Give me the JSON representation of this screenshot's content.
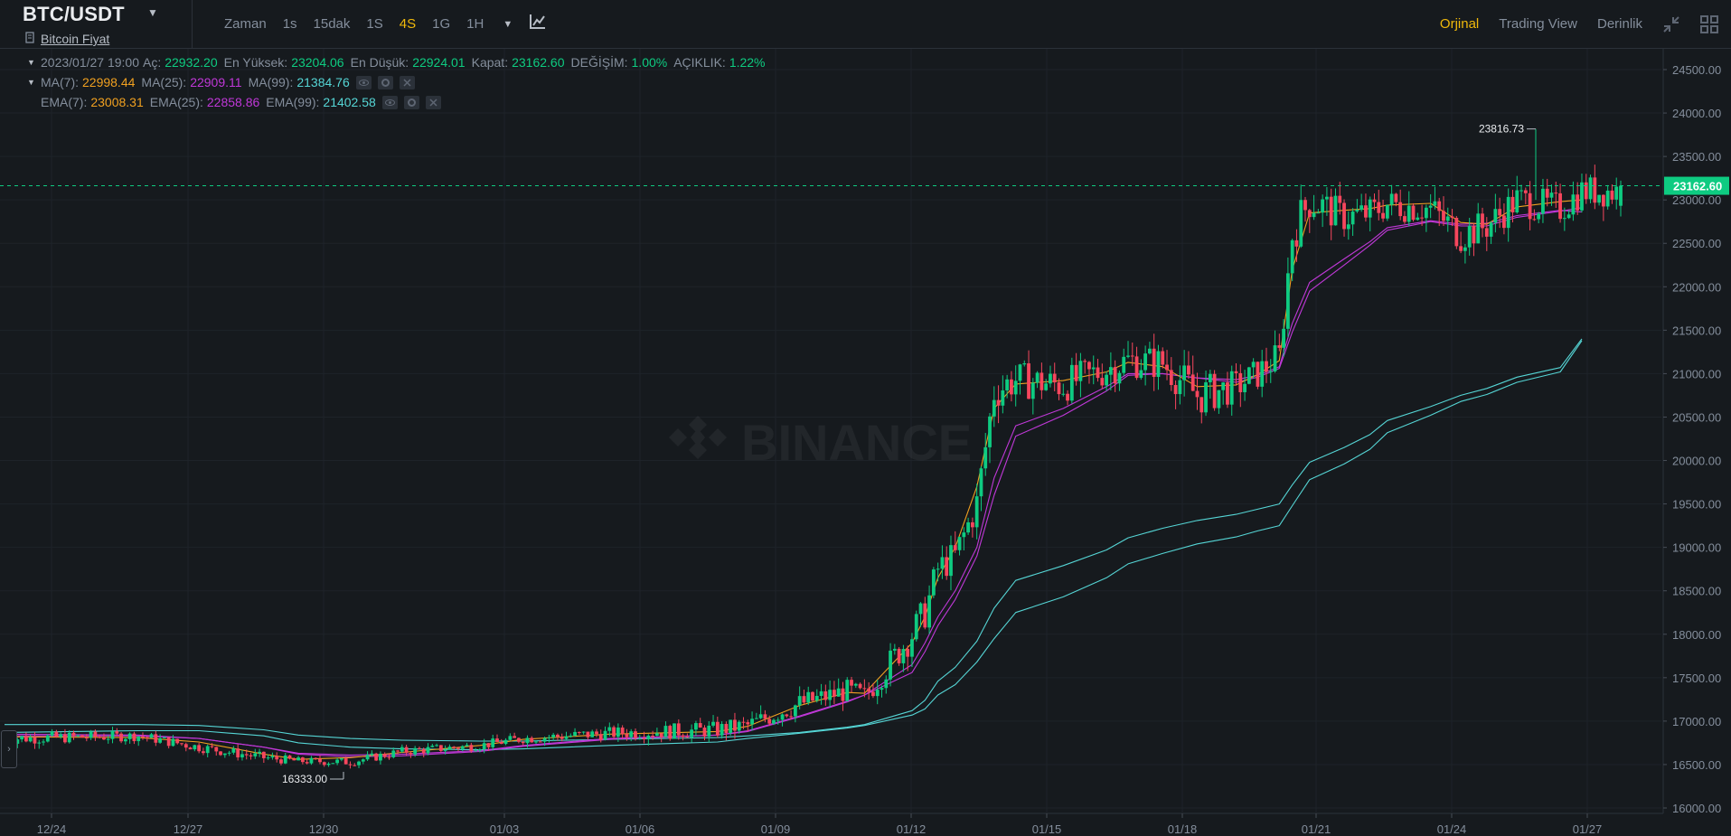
{
  "header": {
    "pair": "BTC/USDT",
    "subtitle": "Bitcoin Fiyat",
    "timeframes": {
      "label": "Zaman",
      "items": [
        "1s",
        "15dak",
        "1S",
        "4S",
        "1G",
        "1H"
      ],
      "active": "4S"
    },
    "views": [
      "Orjinal",
      "Trading View",
      "Derinlik"
    ],
    "active_view": "Orjinal"
  },
  "legend": {
    "date": "2023/01/27 19:00",
    "open_label": "Aç:",
    "open": "22932.20",
    "high_label": "En Yüksek:",
    "high": "23204.06",
    "low_label": "En Düşük:",
    "low": "22924.01",
    "close_label": "Kapat:",
    "close": "23162.60",
    "change_label": "DEĞİŞİM:",
    "change": "1.00%",
    "amplitude_label": "AÇIKLIK:",
    "amplitude": "1.22%",
    "ma7_label": "MA(7):",
    "ma7": "22998.44",
    "ma25_label": "MA(25):",
    "ma25": "22909.11",
    "ma99_label": "MA(99):",
    "ma99": "21384.76",
    "ema7_label": "EMA(7):",
    "ema7": "23008.31",
    "ema25_label": "EMA(25):",
    "ema25": "22858.86",
    "ema99_label": "EMA(99):",
    "ema99": "21402.58"
  },
  "colors": {
    "up": "#0ecb81",
    "down": "#f6465d",
    "accent": "#f0b90b",
    "ma7": "#f0a020",
    "ma25": "#c038d8",
    "ma99": "#55d5d5",
    "ema7": "#f0a020",
    "ema25": "#c038d8",
    "ema99": "#55d5d5"
  },
  "chart_data": {
    "type": "candlestick",
    "watermark": "BINANCE",
    "y_ticks": [
      "24500.00",
      "24000.00",
      "23500.00",
      "23000.00",
      "22500.00",
      "22000.00",
      "21500.00",
      "21000.00",
      "20500.00",
      "20000.00",
      "19500.00",
      "19000.00",
      "18500.00",
      "18000.00",
      "17500.00",
      "17000.00",
      "16500.00",
      "16000.00"
    ],
    "x_ticks": [
      "12/24",
      "12/27",
      "12/30",
      "01/03",
      "01/06",
      "01/09",
      "01/12",
      "01/15",
      "01/18",
      "01/21",
      "01/24",
      "01/27"
    ],
    "ylim": [
      15600,
      24700
    ],
    "current_price": "23162.60",
    "high_marker": "23816.73",
    "low_marker": "16333.00",
    "segments": [
      [
        0,
        16800,
        150,
        40
      ],
      [
        31,
        16830,
        120,
        40
      ],
      [
        45,
        16700,
        120,
        60
      ],
      [
        60,
        16580,
        120,
        40
      ],
      [
        68,
        16540,
        90,
        30
      ],
      [
        80,
        16530,
        100,
        35
      ],
      [
        92,
        16650,
        110,
        45
      ],
      [
        110,
        16720,
        110,
        40
      ],
      [
        120,
        16800,
        120,
        45
      ],
      [
        140,
        16860,
        150,
        55
      ],
      [
        165,
        16900,
        200,
        60
      ],
      [
        172,
        16950,
        220,
        60
      ],
      [
        184,
        17200,
        260,
        70
      ],
      [
        195,
        17350,
        260,
        80
      ],
      [
        199,
        17280,
        280,
        90
      ],
      [
        210,
        18000,
        400,
        140
      ],
      [
        213,
        18250,
        400,
        140
      ],
      [
        216,
        18750,
        380,
        140
      ],
      [
        220,
        18900,
        380,
        140
      ],
      [
        225,
        19500,
        420,
        140
      ],
      [
        229,
        20800,
        500,
        160
      ],
      [
        234,
        20930,
        420,
        150
      ],
      [
        245,
        20870,
        420,
        130
      ],
      [
        255,
        21050,
        420,
        150
      ],
      [
        260,
        21150,
        400,
        150
      ],
      [
        268,
        21120,
        420,
        150
      ],
      [
        276,
        20750,
        500,
        160
      ],
      [
        285,
        20850,
        380,
        140
      ],
      [
        290,
        21000,
        380,
        140
      ],
      [
        295,
        21200,
        400,
        150
      ],
      [
        298,
        22600,
        480,
        160
      ],
      [
        302,
        23000,
        500,
        170
      ],
      [
        310,
        22800,
        380,
        140
      ],
      [
        316,
        22850,
        380,
        130
      ],
      [
        320,
        22950,
        380,
        140
      ],
      [
        330,
        22900,
        380,
        140
      ],
      [
        337,
        22600,
        420,
        140
      ],
      [
        343,
        22700,
        400,
        140
      ],
      [
        350,
        23000,
        400,
        140
      ],
      [
        360,
        22900,
        380,
        140
      ],
      [
        365,
        23100,
        380,
        130
      ]
    ],
    "ma7_vals": [
      16820,
      16810,
      16760,
      16620,
      16560,
      16580,
      16640,
      16720,
      16790,
      16850,
      16880,
      16940,
      17180,
      17330,
      17320,
      17900,
      18200,
      18650,
      19000,
      19700,
      20600,
      20880,
      20920,
      21020,
      21130,
      21080,
      20850,
      20870,
      20990,
      21150,
      22200,
      22850,
      22880,
      22900,
      22940,
      22960,
      22740,
      22720,
      22920,
      22980,
      23000
    ],
    "ma25_vals": [
      16830,
      16830,
      16800,
      16700,
      16620,
      16590,
      16600,
      16650,
      16710,
      16790,
      16840,
      16880,
      17050,
      17220,
      17300,
      17560,
      17800,
      18100,
      18400,
      18900,
      19600,
      20280,
      20520,
      20800,
      20980,
      21000,
      20950,
      20900,
      20960,
      21060,
      21480,
      21950,
      22250,
      22480,
      22650,
      22750,
      22700,
      22700,
      22800,
      22870,
      22910
    ],
    "ma99_vals": [
      16870,
      16890,
      16890,
      16830,
      16750,
      16700,
      16680,
      16670,
      16680,
      16720,
      16760,
      16800,
      16860,
      16920,
      16950,
      17070,
      17140,
      17300,
      17420,
      17680,
      17950,
      18250,
      18430,
      18650,
      18810,
      18930,
      19040,
      19120,
      19190,
      19250,
      19480,
      19780,
      19960,
      20130,
      20320,
      20520,
      20680,
      20760,
      20900,
      21020,
      21380
    ],
    "ema7_vals": [
      16830,
      16820,
      16740,
      16620,
      16570,
      16590,
      16650,
      16730,
      16800,
      16860,
      16890,
      16960,
      17200,
      17340,
      17340,
      17950,
      18250,
      18700,
      19000,
      19700,
      20700,
      20880,
      20930,
      21040,
      21150,
      21100,
      20870,
      20880,
      21000,
      21160,
      22250,
      22880,
      22890,
      22910,
      22950,
      22960,
      22760,
      22740,
      22930,
      22990,
      23010
    ],
    "ema25_vals": [
      16850,
      16840,
      16800,
      16700,
      16630,
      16610,
      16620,
      16660,
      16720,
      16800,
      16840,
      16890,
      17060,
      17230,
      17300,
      17650,
      17900,
      18200,
      18500,
      19000,
      19800,
      20400,
      20600,
      20850,
      21000,
      21000,
      20950,
      20930,
      20980,
      21080,
      21580,
      22050,
      22320,
      22520,
      22680,
      22760,
      22720,
      22730,
      22820,
      22880,
      22860
    ],
    "ema99_vals": [
      16960,
      16960,
      16950,
      16900,
      16840,
      16800,
      16780,
      16770,
      16770,
      16790,
      16810,
      16830,
      16870,
      16930,
      16960,
      17120,
      17240,
      17460,
      17620,
      17920,
      18300,
      18620,
      18790,
      18970,
      19110,
      19220,
      19310,
      19380,
      19440,
      19500,
      19720,
      19980,
      20150,
      20300,
      20460,
      20620,
      20750,
      20830,
      20960,
      21070,
      21400
    ]
  }
}
